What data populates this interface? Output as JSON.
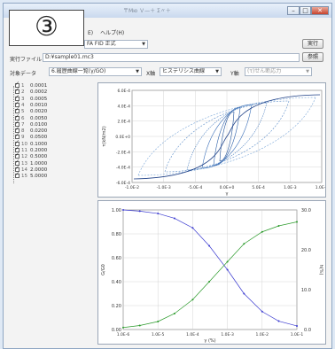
{
  "window": {
    "title": "〒Мю Ｖ—＋ Σ〃＋"
  },
  "step_badge": "③",
  "menu": {
    "help": "ヘルプ(H)",
    "prefix": "E)"
  },
  "method": {
    "value": "FA FID 正式",
    "run_label": "実行"
  },
  "file": {
    "label": "実行ファイル",
    "value": "D:¥sample01.mc3",
    "browse_label": "参照"
  },
  "axes_row": {
    "target_label": "対象データ",
    "target_value": "6.履歴曲線一覧(γ/GO)",
    "x_axis_label": "X軸",
    "x_axis_value": "ヒステリシス曲線",
    "y_axis_label": "Y軸",
    "y_axis_value": "(τ)せん断応力"
  },
  "series_list": [
    {
      "no": "1",
      "value": "0.0001"
    },
    {
      "no": "2",
      "value": "0.0002"
    },
    {
      "no": "3",
      "value": "0.0005"
    },
    {
      "no": "4",
      "value": "0.0010"
    },
    {
      "no": "5",
      "value": "0.0020"
    },
    {
      "no": "6",
      "value": "0.0050"
    },
    {
      "no": "7",
      "value": "0.0100"
    },
    {
      "no": "8",
      "value": "0.0200"
    },
    {
      "no": "9",
      "value": "0.0500"
    },
    {
      "no": "10",
      "value": "0.1000"
    },
    {
      "no": "11",
      "value": "0.2000"
    },
    {
      "no": "12",
      "value": "0.5000"
    },
    {
      "no": "13",
      "value": "1.0000"
    },
    {
      "no": "14",
      "value": "2.0000"
    },
    {
      "no": "15",
      "value": "5.0000"
    }
  ],
  "chart_top": {
    "y_ticks": [
      "6.0E-4",
      "4.0E-4",
      "2.0E-4",
      "0.0E+0",
      "-2.0E-4",
      "-4.0E-4",
      "-6.0E-4"
    ],
    "x_ticks": [
      "-1.0E-2",
      "-1.0E-3",
      "-5.0E-4",
      "0.0E+0",
      "5.0E-4",
      "1.0E-3",
      "1.0E-2"
    ],
    "x_label": "γ",
    "y_label": "τ(kN/m2)"
  },
  "chart_bottom": {
    "y_ticks": [
      "1.00",
      "0.80",
      "0.60",
      "0.40",
      "0.20",
      "0.00"
    ],
    "y2_ticks": [
      "30.0",
      "20.0",
      "10.0",
      "0.0"
    ],
    "x_ticks": [
      "1.0E-6",
      "1.0E-5",
      "1.0E-4",
      "1.0E-3",
      "1.0E-2",
      "1.0E-1"
    ],
    "x_label": "γ (%)",
    "y_label": "G/G0",
    "y2_label": "h(%)"
  },
  "chart_data": {
    "type": "line",
    "x_scale": "log",
    "x": [
      1e-06,
      3e-06,
      1e-05,
      3e-05,
      0.0001,
      0.0003,
      0.001,
      0.003,
      0.01,
      0.03,
      0.1
    ],
    "series": [
      {
        "name": "",
        "axis": "left",
        "color": "#3a3ad0",
        "values": [
          1.0,
          0.99,
          0.97,
          0.93,
          0.85,
          0.7,
          0.5,
          0.3,
          0.15,
          0.07,
          0.03
        ]
      },
      {
        "name": "",
        "axis": "right",
        "color": "#2a9a2a",
        "values": [
          0.5,
          1.0,
          2.0,
          4.0,
          7.5,
          12.0,
          17.0,
          21.5,
          24.5,
          26.0,
          27.0
        ]
      }
    ],
    "ylim": [
      0,
      1.0
    ],
    "y2lim": [
      0,
      30
    ],
    "xlim": [
      1e-06,
      0.1
    ],
    "grid": true
  }
}
